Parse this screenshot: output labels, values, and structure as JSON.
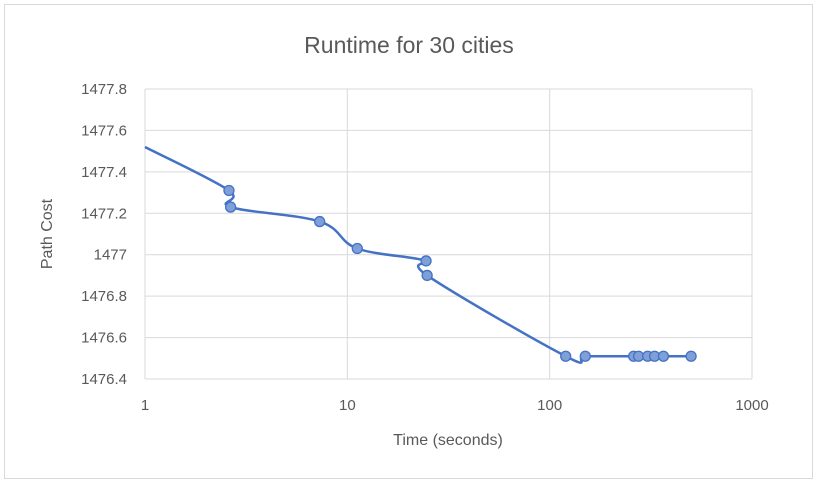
{
  "chart_data": {
    "type": "line",
    "title": "Runtime for 30 cities",
    "xlabel": "Time (seconds)",
    "ylabel": "Path Cost",
    "x_scale": "log",
    "xlim": [
      1,
      1000
    ],
    "ylim": [
      1476.4,
      1477.8
    ],
    "x_ticks": [
      "1",
      "10",
      "100",
      "1000"
    ],
    "y_ticks": [
      "1476.4",
      "1476.6",
      "1476.8",
      "1477",
      "1477.2",
      "1477.4",
      "1477.6",
      "1477.8"
    ],
    "grid": true,
    "series_color": "#4472c4",
    "marker_fill": "#7f9fd8",
    "series": [
      {
        "x": [
          1.0,
          2.6,
          2.65,
          7.3,
          11.2,
          24.5,
          24.8,
          120,
          150,
          260,
          275,
          305,
          330,
          365,
          500
        ],
        "y": [
          1477.52,
          1477.31,
          1477.23,
          1477.16,
          1477.03,
          1476.97,
          1476.9,
          1476.51,
          1476.51,
          1476.51,
          1476.51,
          1476.51,
          1476.51,
          1476.51,
          1476.51
        ],
        "markers": [
          false,
          true,
          true,
          true,
          true,
          true,
          true,
          true,
          true,
          true,
          true,
          true,
          true,
          true,
          true
        ]
      }
    ]
  }
}
